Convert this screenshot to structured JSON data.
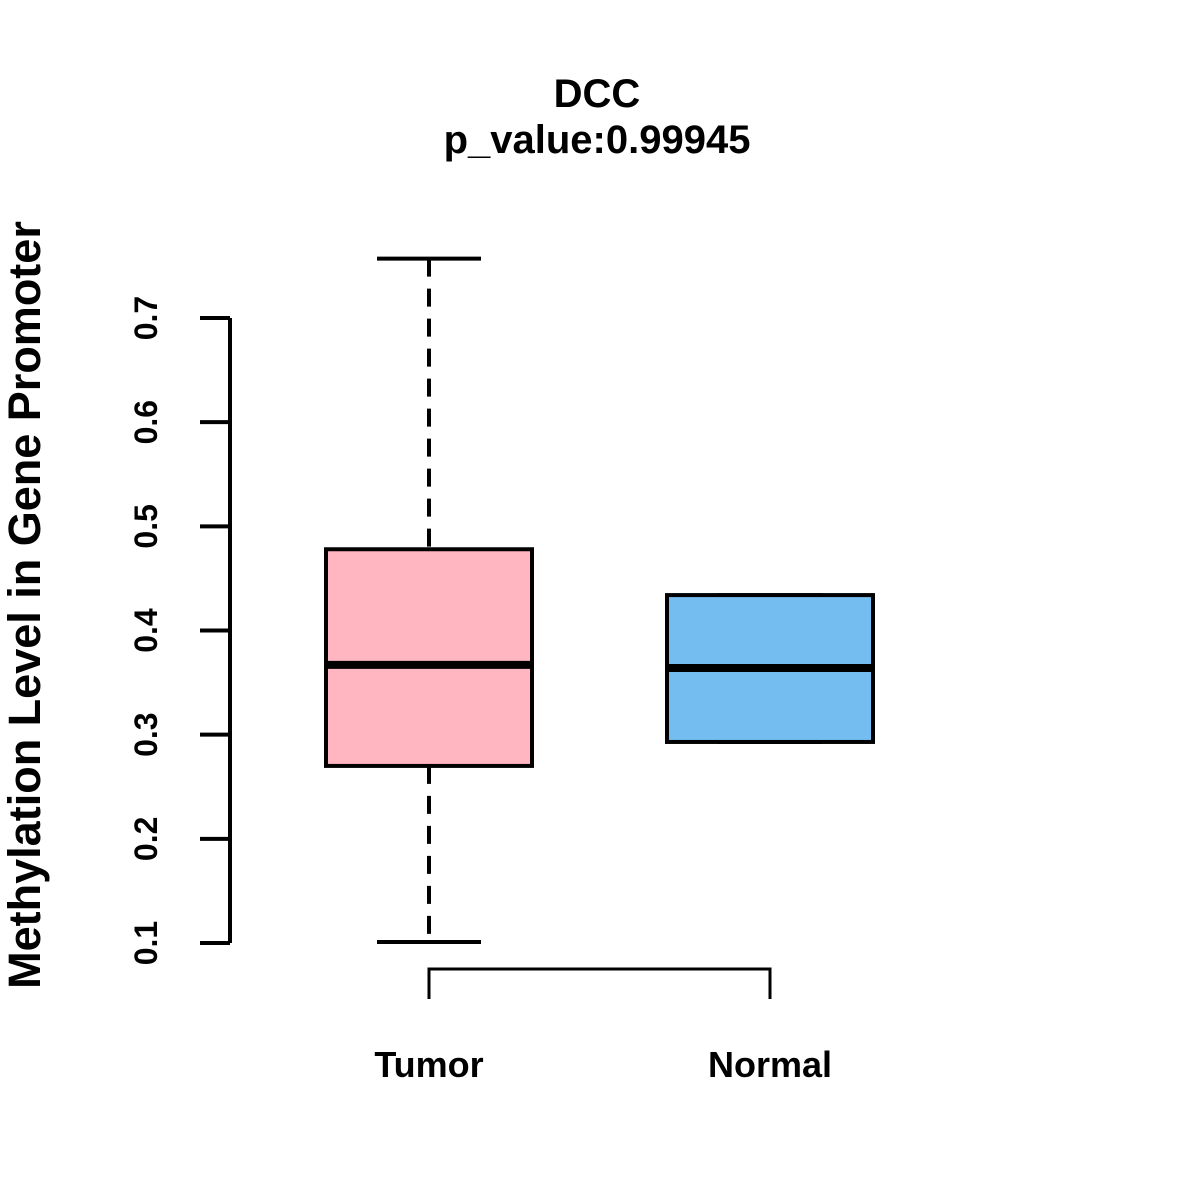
{
  "page": {
    "background_color": "#ffffff",
    "line_color": "#000000"
  },
  "chart_data": {
    "type": "boxplot",
    "title": "DCC",
    "subtitle": "p_value:0.99945",
    "ylabel": "Methylation Level in Gene Promoter",
    "xlabel": "",
    "ylim": [
      0.1,
      0.7
    ],
    "grid": false,
    "legend": "none",
    "yticks": {
      "values": [
        0.1,
        0.2,
        0.3,
        0.4,
        0.5,
        0.6,
        0.7
      ],
      "labels": [
        "0.1",
        "0.2",
        "0.3",
        "0.4",
        "0.5",
        "0.6",
        "0.7"
      ]
    },
    "categories": [
      "Tumor",
      "Normal"
    ],
    "series": [
      {
        "label": "Tumor",
        "color": "#FFB6C1",
        "whisker_low": 0.101,
        "q1": 0.27,
        "median": 0.367,
        "q3": 0.478,
        "whisker_high": 0.757,
        "whisker_style": "dashed"
      },
      {
        "label": "Normal",
        "color": "#74BDF0",
        "whisker_low": 0.293,
        "q1": 0.293,
        "median": 0.364,
        "q3": 0.434,
        "whisker_high": 0.434,
        "whisker_style": "dashed"
      }
    ]
  }
}
